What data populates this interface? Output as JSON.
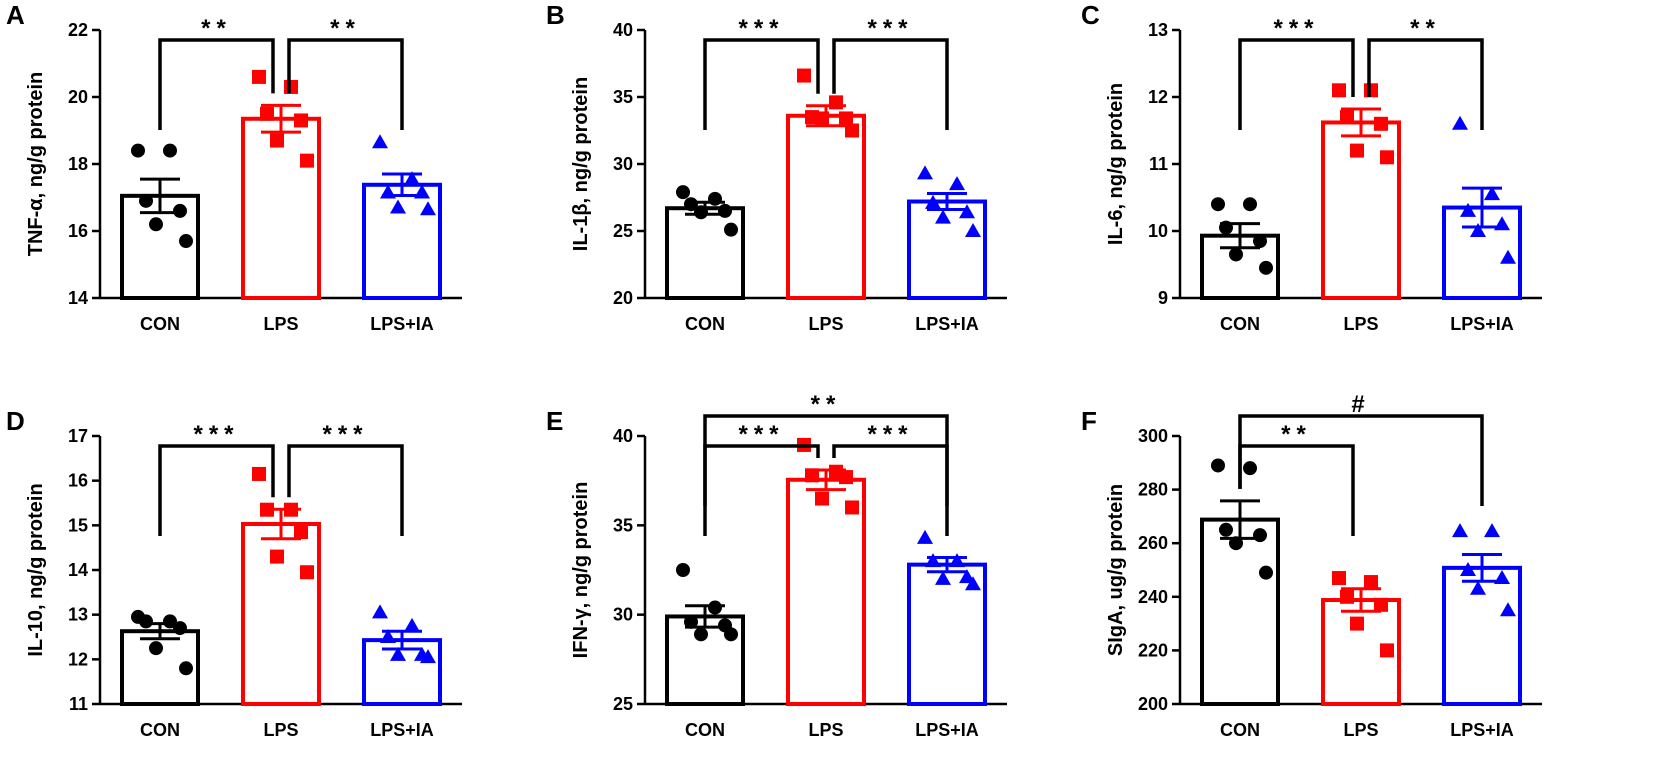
{
  "chart_data": [
    {
      "panel": "A",
      "type": "bar",
      "ylabel": "TNF-α, ng/g protein",
      "ylim": [
        14,
        22
      ],
      "yticks": [
        14,
        16,
        18,
        20,
        22
      ],
      "categories": [
        "CON",
        "LPS",
        "LPS+IA"
      ],
      "values": [
        17.05,
        19.35,
        17.38
      ],
      "sem": [
        0.5,
        0.4,
        0.32
      ],
      "points": [
        [
          18.4,
          18.4,
          16.9,
          16.6,
          16.2,
          15.7
        ],
        [
          20.6,
          20.3,
          19.5,
          19.3,
          18.7,
          18.1
        ],
        [
          18.65,
          17.55,
          17.15,
          17.15,
          16.7,
          16.65
        ]
      ],
      "significance": [
        {
          "from": 0,
          "to": 1,
          "label": "**",
          "level": 0
        },
        {
          "from": 1,
          "to": 2,
          "label": "**",
          "level": 0
        }
      ]
    },
    {
      "panel": "B",
      "type": "bar",
      "ylabel": "IL-1β, ng/g protein",
      "ylim": [
        20,
        40
      ],
      "yticks": [
        20,
        25,
        30,
        35,
        40
      ],
      "categories": [
        "CON",
        "LPS",
        "LPS+IA"
      ],
      "values": [
        26.7,
        33.6,
        27.2
      ],
      "sem": [
        0.45,
        0.75,
        0.6
      ],
      "points": [
        [
          27.9,
          27.4,
          27.0,
          26.5,
          26.4,
          25.1
        ],
        [
          36.6,
          34.6,
          33.5,
          33.4,
          33.4,
          32.5
        ],
        [
          29.3,
          28.5,
          27.1,
          26.4,
          26.0,
          25.0
        ]
      ],
      "significance": [
        {
          "from": 0,
          "to": 1,
          "label": "***",
          "level": 0
        },
        {
          "from": 1,
          "to": 2,
          "label": "***",
          "level": 0
        }
      ]
    },
    {
      "panel": "C",
      "type": "bar",
      "ylabel": "IL-6, ng/g protein",
      "ylim": [
        9,
        13
      ],
      "yticks": [
        9,
        10,
        11,
        12,
        13
      ],
      "categories": [
        "CON",
        "LPS",
        "LPS+IA"
      ],
      "values": [
        9.93,
        11.62,
        10.35
      ],
      "sem": [
        0.18,
        0.2,
        0.29
      ],
      "points": [
        [
          10.4,
          10.4,
          10.05,
          9.85,
          9.65,
          9.45
        ],
        [
          12.1,
          12.1,
          11.7,
          11.6,
          11.2,
          11.1
        ],
        [
          11.6,
          10.55,
          10.3,
          10.1,
          10.0,
          9.6
        ]
      ],
      "significance": [
        {
          "from": 0,
          "to": 1,
          "label": "***",
          "level": 0
        },
        {
          "from": 1,
          "to": 2,
          "label": "**",
          "level": 0
        }
      ]
    },
    {
      "panel": "D",
      "type": "bar",
      "ylabel": "IL-10, ng/g protein",
      "ylim": [
        11,
        17
      ],
      "yticks": [
        11,
        12,
        13,
        14,
        15,
        16,
        17
      ],
      "categories": [
        "CON",
        "LPS",
        "LPS+IA"
      ],
      "values": [
        12.63,
        15.03,
        12.43
      ],
      "sem": [
        0.17,
        0.33,
        0.2
      ],
      "points": [
        [
          12.95,
          12.85,
          12.85,
          12.7,
          12.25,
          11.8
        ],
        [
          16.15,
          15.35,
          15.35,
          14.85,
          14.3,
          13.95
        ],
        [
          13.05,
          12.75,
          12.5,
          12.1,
          12.1,
          12.05
        ]
      ],
      "significance": [
        {
          "from": 0,
          "to": 1,
          "label": "***",
          "level": 0
        },
        {
          "from": 1,
          "to": 2,
          "label": "***",
          "level": 0
        }
      ]
    },
    {
      "panel": "E",
      "type": "bar",
      "ylabel": "IFN-γ, ng/g protein",
      "ylim": [
        25,
        40
      ],
      "yticks": [
        25,
        30,
        35,
        40
      ],
      "categories": [
        "CON",
        "LPS",
        "LPS+IA"
      ],
      "values": [
        29.9,
        37.55,
        32.8
      ],
      "sem": [
        0.6,
        0.55,
        0.4
      ],
      "points": [
        [
          32.5,
          30.4,
          29.6,
          29.4,
          28.9,
          28.9
        ],
        [
          39.5,
          38.0,
          37.8,
          37.7,
          36.5,
          36.0
        ],
        [
          34.3,
          33.0,
          33.0,
          32.1,
          32.0,
          31.7
        ]
      ],
      "significance": [
        {
          "from": 0,
          "to": 1,
          "label": "***",
          "level": 0
        },
        {
          "from": 1,
          "to": 2,
          "label": "***",
          "level": 0
        },
        {
          "from": 0,
          "to": 2,
          "label": "**",
          "level": 1
        }
      ]
    },
    {
      "panel": "F",
      "type": "bar",
      "ylabel": "SIgA, ug/g protein",
      "ylim": [
        200,
        300
      ],
      "yticks": [
        200,
        220,
        240,
        260,
        280,
        300
      ],
      "categories": [
        "CON",
        "LPS",
        "LPS+IA"
      ],
      "values": [
        268.8,
        238.8,
        250.8
      ],
      "sem": [
        7.0,
        4.2,
        5.0
      ],
      "points": [
        [
          289.0,
          288.0,
          265.0,
          263.0,
          260.0,
          249.0
        ],
        [
          247.0,
          245.5,
          240.0,
          237.0,
          230.0,
          220.0
        ],
        [
          264.5,
          264.5,
          250.0,
          247.0,
          243.0,
          235.0
        ]
      ],
      "significance": [
        {
          "from": 0,
          "to": 1,
          "label": "**",
          "level": 0
        },
        {
          "from": 0,
          "to": 2,
          "label": "#",
          "level": 1
        }
      ]
    }
  ],
  "styles": {
    "series_colors": [
      "#000000",
      "#ff0000",
      "#0000ff"
    ],
    "marker_shapes": [
      "circle",
      "square",
      "triangle"
    ],
    "axis_color": "#000000"
  }
}
